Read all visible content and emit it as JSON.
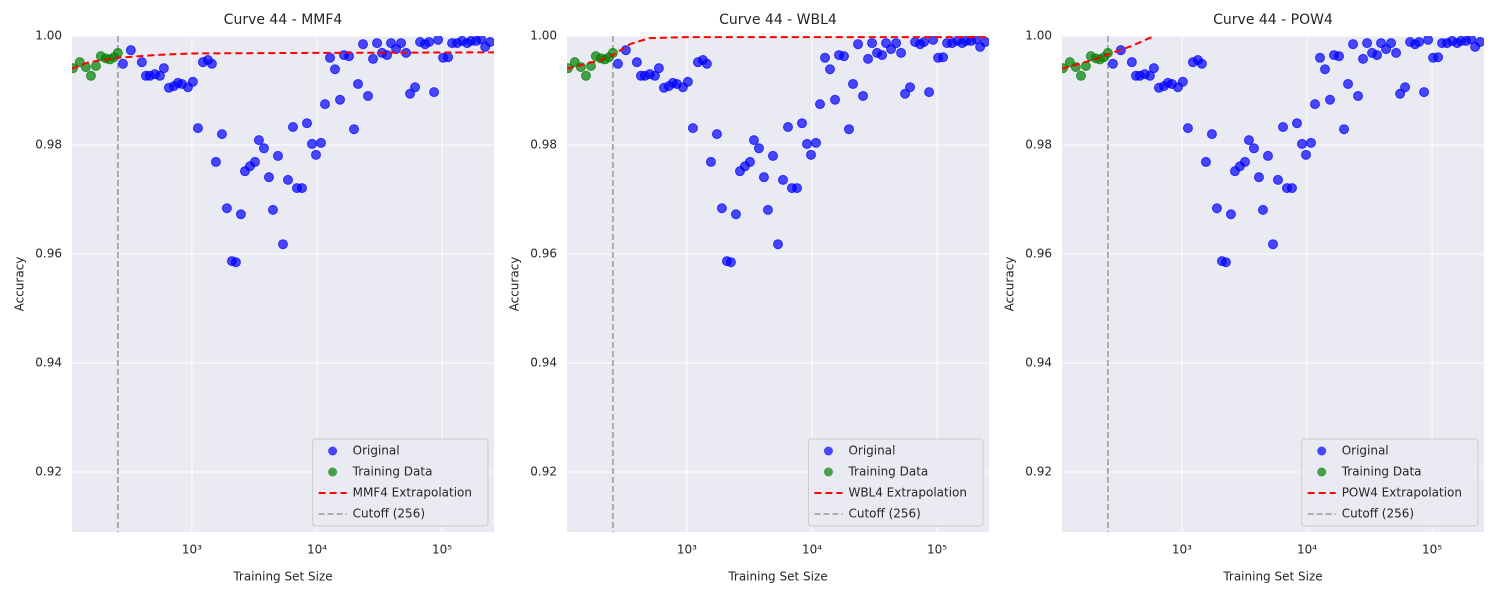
{
  "chart_data": [
    {
      "type": "scatter",
      "title": "Curve 44 - MMF4",
      "x_label": "Training Set Size",
      "y_label": "Accuracy",
      "x_scale": "log",
      "xlim": [
        110,
        260000
      ],
      "ylim": [
        0.909,
        1.0
      ],
      "xticks": [
        {
          "value": 1000,
          "label": "10³"
        },
        {
          "value": 10000,
          "label": "10⁴"
        },
        {
          "value": 100000,
          "label": "10⁵"
        }
      ],
      "yticks": [
        0.92,
        0.94,
        0.96,
        0.98,
        {
          "value": 1,
          "label": "1.00"
        }
      ],
      "grid": true,
      "legend": "lower right",
      "series": [
        {
          "name": "Original",
          "kind": "scatter",
          "color": "#0000ff",
          "x": [
            281,
            325,
            398,
            429,
            461,
            506,
            555,
            597,
            655,
            718,
            773,
            832,
            929,
            1018,
            1117,
            1225,
            1343,
            1445,
            1556,
            1738,
            1905,
            2089,
            2249,
            2466,
            2655,
            2911,
            3192,
            3436,
            3767,
            4130,
            4446,
            4875,
            5346,
            5861,
            6427,
            6918,
            7586,
            8318,
            9120,
            9817,
            10765,
            11588,
            12706,
            13932,
            15276,
            16444,
            18030,
            19770,
            21281,
            23335,
            25586,
            28054,
            30200,
            33113,
            36308,
            39084,
            42855,
            46989,
            51523,
            55463,
            60814,
            66681,
            73114,
            78705,
            86298,
            92897,
            101859,
            111686,
            120226,
            131826,
            144544,
            158489,
            170608,
            187068,
            205116,
            220800,
            242103
          ],
          "values": [
            0.9949,
            0.9974,
            0.9952,
            0.9927,
            0.9927,
            0.993,
            0.9927,
            0.9941,
            0.9905,
            0.9908,
            0.9914,
            0.9912,
            0.9906,
            0.9916,
            0.9831,
            0.9952,
            0.9956,
            0.9949,
            0.9769,
            0.982,
            0.9684,
            0.9587,
            0.9585,
            0.9673,
            0.9752,
            0.9761,
            0.9769,
            0.9809,
            0.9794,
            0.9741,
            0.9681,
            0.978,
            0.9618,
            0.9736,
            0.9833,
            0.9721,
            0.9721,
            0.984,
            0.9802,
            0.9782,
            0.9804,
            0.9875,
            0.996,
            0.9939,
            0.9883,
            0.9965,
            0.9963,
            0.9829,
            0.9912,
            0.9985,
            0.989,
            0.9958,
            0.9987,
            0.9969,
            0.9965,
            0.9987,
            0.9976,
            0.9987,
            0.9969,
            0.9894,
            0.9906,
            0.9989,
            0.9985,
            0.9989,
            0.9897,
            0.9993,
            0.996,
            0.9961,
            0.9987,
            0.9987,
            0.9991,
            0.9987,
            0.9991,
            0.9991,
            0.9994,
            0.998,
            0.9989
          ]
        },
        {
          "name": "Training Data",
          "kind": "scatter",
          "color": "#008000",
          "x": [
            112,
            127,
            142,
            156,
            171,
            187,
            205,
            221,
            238,
            256
          ],
          "values": [
            0.9941,
            0.9952,
            0.9943,
            0.9927,
            0.9945,
            0.9963,
            0.9959,
            0.9957,
            0.9961,
            0.9969
          ]
        },
        {
          "name": "MMF4 Extrapolation",
          "kind": "line",
          "style": "dashed",
          "color": "#ff0000",
          "x": [
            110,
            150,
            256,
            500,
            1000,
            10000,
            260000
          ],
          "values": [
            0.994,
            0.9952,
            0.996,
            0.9965,
            0.9968,
            0.9969,
            0.997
          ]
        }
      ],
      "cutoff": {
        "name": "Cutoff (256)",
        "value": 256,
        "color": "#999999"
      }
    },
    {
      "type": "scatter",
      "title": "Curve 44 - WBL4",
      "x_label": "Training Set Size",
      "y_label": "Accuracy",
      "x_scale": "log",
      "xlim": [
        110,
        260000
      ],
      "ylim": [
        0.909,
        1.0
      ],
      "xticks": [
        {
          "value": 1000,
          "label": "10³"
        },
        {
          "value": 10000,
          "label": "10⁴"
        },
        {
          "value": 100000,
          "label": "10⁵"
        }
      ],
      "yticks": [
        0.92,
        0.94,
        0.96,
        0.98,
        {
          "value": 1,
          "label": "1.00"
        }
      ],
      "grid": true,
      "legend": "lower right",
      "series": [
        {
          "name": "Original",
          "kind": "scatter",
          "color": "#0000ff",
          "x": [
            281,
            325,
            398,
            429,
            461,
            506,
            555,
            597,
            655,
            718,
            773,
            832,
            929,
            1018,
            1117,
            1225,
            1343,
            1445,
            1556,
            1738,
            1905,
            2089,
            2249,
            2466,
            2655,
            2911,
            3192,
            3436,
            3767,
            4130,
            4446,
            4875,
            5346,
            5861,
            6427,
            6918,
            7586,
            8318,
            9120,
            9817,
            10765,
            11588,
            12706,
            13932,
            15276,
            16444,
            18030,
            19770,
            21281,
            23335,
            25586,
            28054,
            30200,
            33113,
            36308,
            39084,
            42855,
            46989,
            51523,
            55463,
            60814,
            66681,
            73114,
            78705,
            86298,
            92897,
            101859,
            111686,
            120226,
            131826,
            144544,
            158489,
            170608,
            187068,
            205116,
            220800,
            242103
          ],
          "values": [
            0.9949,
            0.9974,
            0.9952,
            0.9927,
            0.9927,
            0.993,
            0.9927,
            0.9941,
            0.9905,
            0.9908,
            0.9914,
            0.9912,
            0.9906,
            0.9916,
            0.9831,
            0.9952,
            0.9956,
            0.9949,
            0.9769,
            0.982,
            0.9684,
            0.9587,
            0.9585,
            0.9673,
            0.9752,
            0.9761,
            0.9769,
            0.9809,
            0.9794,
            0.9741,
            0.9681,
            0.978,
            0.9618,
            0.9736,
            0.9833,
            0.9721,
            0.9721,
            0.984,
            0.9802,
            0.9782,
            0.9804,
            0.9875,
            0.996,
            0.9939,
            0.9883,
            0.9965,
            0.9963,
            0.9829,
            0.9912,
            0.9985,
            0.989,
            0.9958,
            0.9987,
            0.9969,
            0.9965,
            0.9987,
            0.9976,
            0.9987,
            0.9969,
            0.9894,
            0.9906,
            0.9989,
            0.9985,
            0.9989,
            0.9897,
            0.9993,
            0.996,
            0.9961,
            0.9987,
            0.9987,
            0.9991,
            0.9987,
            0.9991,
            0.9991,
            0.9994,
            0.998,
            0.9989
          ]
        },
        {
          "name": "Training Data",
          "kind": "scatter",
          "color": "#008000",
          "x": [
            112,
            127,
            142,
            156,
            171,
            187,
            205,
            221,
            238,
            256
          ],
          "values": [
            0.9941,
            0.9952,
            0.9943,
            0.9927,
            0.9945,
            0.9963,
            0.9959,
            0.9957,
            0.9961,
            0.9969
          ]
        },
        {
          "name": "WBL4 Extrapolation",
          "kind": "line",
          "style": "dashed",
          "color": "#ff0000",
          "x": [
            110,
            200,
            256,
            350,
            500,
            1000,
            10000,
            260000
          ],
          "values": [
            0.994,
            0.9955,
            0.9965,
            0.9985,
            0.9996,
            0.9998,
            0.9998,
            0.9998
          ]
        }
      ],
      "cutoff": {
        "name": "Cutoff (256)",
        "value": 256,
        "color": "#999999"
      }
    },
    {
      "type": "scatter",
      "title": "Curve 44 - POW4",
      "x_label": "Training Set Size",
      "y_label": "Accuracy",
      "x_scale": "log",
      "xlim": [
        110,
        260000
      ],
      "ylim": [
        0.909,
        1.0
      ],
      "xticks": [
        {
          "value": 1000,
          "label": "10³"
        },
        {
          "value": 10000,
          "label": "10⁴"
        },
        {
          "value": 100000,
          "label": "10⁵"
        }
      ],
      "yticks": [
        0.92,
        0.94,
        0.96,
        0.98,
        {
          "value": 1,
          "label": "1.00"
        }
      ],
      "grid": true,
      "legend": "lower right",
      "series": [
        {
          "name": "Original",
          "kind": "scatter",
          "color": "#0000ff",
          "x": [
            281,
            325,
            398,
            429,
            461,
            506,
            555,
            597,
            655,
            718,
            773,
            832,
            929,
            1018,
            1117,
            1225,
            1343,
            1445,
            1556,
            1738,
            1905,
            2089,
            2249,
            2466,
            2655,
            2911,
            3192,
            3436,
            3767,
            4130,
            4446,
            4875,
            5346,
            5861,
            6427,
            6918,
            7586,
            8318,
            9120,
            9817,
            10765,
            11588,
            12706,
            13932,
            15276,
            16444,
            18030,
            19770,
            21281,
            23335,
            25586,
            28054,
            30200,
            33113,
            36308,
            39084,
            42855,
            46989,
            51523,
            55463,
            60814,
            66681,
            73114,
            78705,
            86298,
            92897,
            101859,
            111686,
            120226,
            131826,
            144544,
            158489,
            170608,
            187068,
            205116,
            220800,
            242103
          ],
          "values": [
            0.9949,
            0.9974,
            0.9952,
            0.9927,
            0.9927,
            0.993,
            0.9927,
            0.9941,
            0.9905,
            0.9908,
            0.9914,
            0.9912,
            0.9906,
            0.9916,
            0.9831,
            0.9952,
            0.9956,
            0.9949,
            0.9769,
            0.982,
            0.9684,
            0.9587,
            0.9585,
            0.9673,
            0.9752,
            0.9761,
            0.9769,
            0.9809,
            0.9794,
            0.9741,
            0.9681,
            0.978,
            0.9618,
            0.9736,
            0.9833,
            0.9721,
            0.9721,
            0.984,
            0.9802,
            0.9782,
            0.9804,
            0.9875,
            0.996,
            0.9939,
            0.9883,
            0.9965,
            0.9963,
            0.9829,
            0.9912,
            0.9985,
            0.989,
            0.9958,
            0.9987,
            0.9969,
            0.9965,
            0.9987,
            0.9976,
            0.9987,
            0.9969,
            0.9894,
            0.9906,
            0.9989,
            0.9985,
            0.9989,
            0.9897,
            0.9993,
            0.996,
            0.9961,
            0.9987,
            0.9987,
            0.9991,
            0.9987,
            0.9991,
            0.9991,
            0.9994,
            0.998,
            0.9989
          ]
        },
        {
          "name": "Training Data",
          "kind": "scatter",
          "color": "#008000",
          "x": [
            112,
            127,
            142,
            156,
            171,
            187,
            205,
            221,
            238,
            256
          ],
          "values": [
            0.9941,
            0.9952,
            0.9943,
            0.9927,
            0.9945,
            0.9963,
            0.9959,
            0.9957,
            0.9961,
            0.9969
          ]
        },
        {
          "name": "POW4 Extrapolation",
          "kind": "line",
          "style": "dashed",
          "color": "#ff0000",
          "x": [
            110,
            200,
            256,
            400,
            600
          ],
          "values": [
            0.994,
            0.9957,
            0.9966,
            0.9982,
            1.0
          ]
        }
      ],
      "cutoff": {
        "name": "Cutoff (256)",
        "value": 256,
        "color": "#999999"
      }
    }
  ]
}
